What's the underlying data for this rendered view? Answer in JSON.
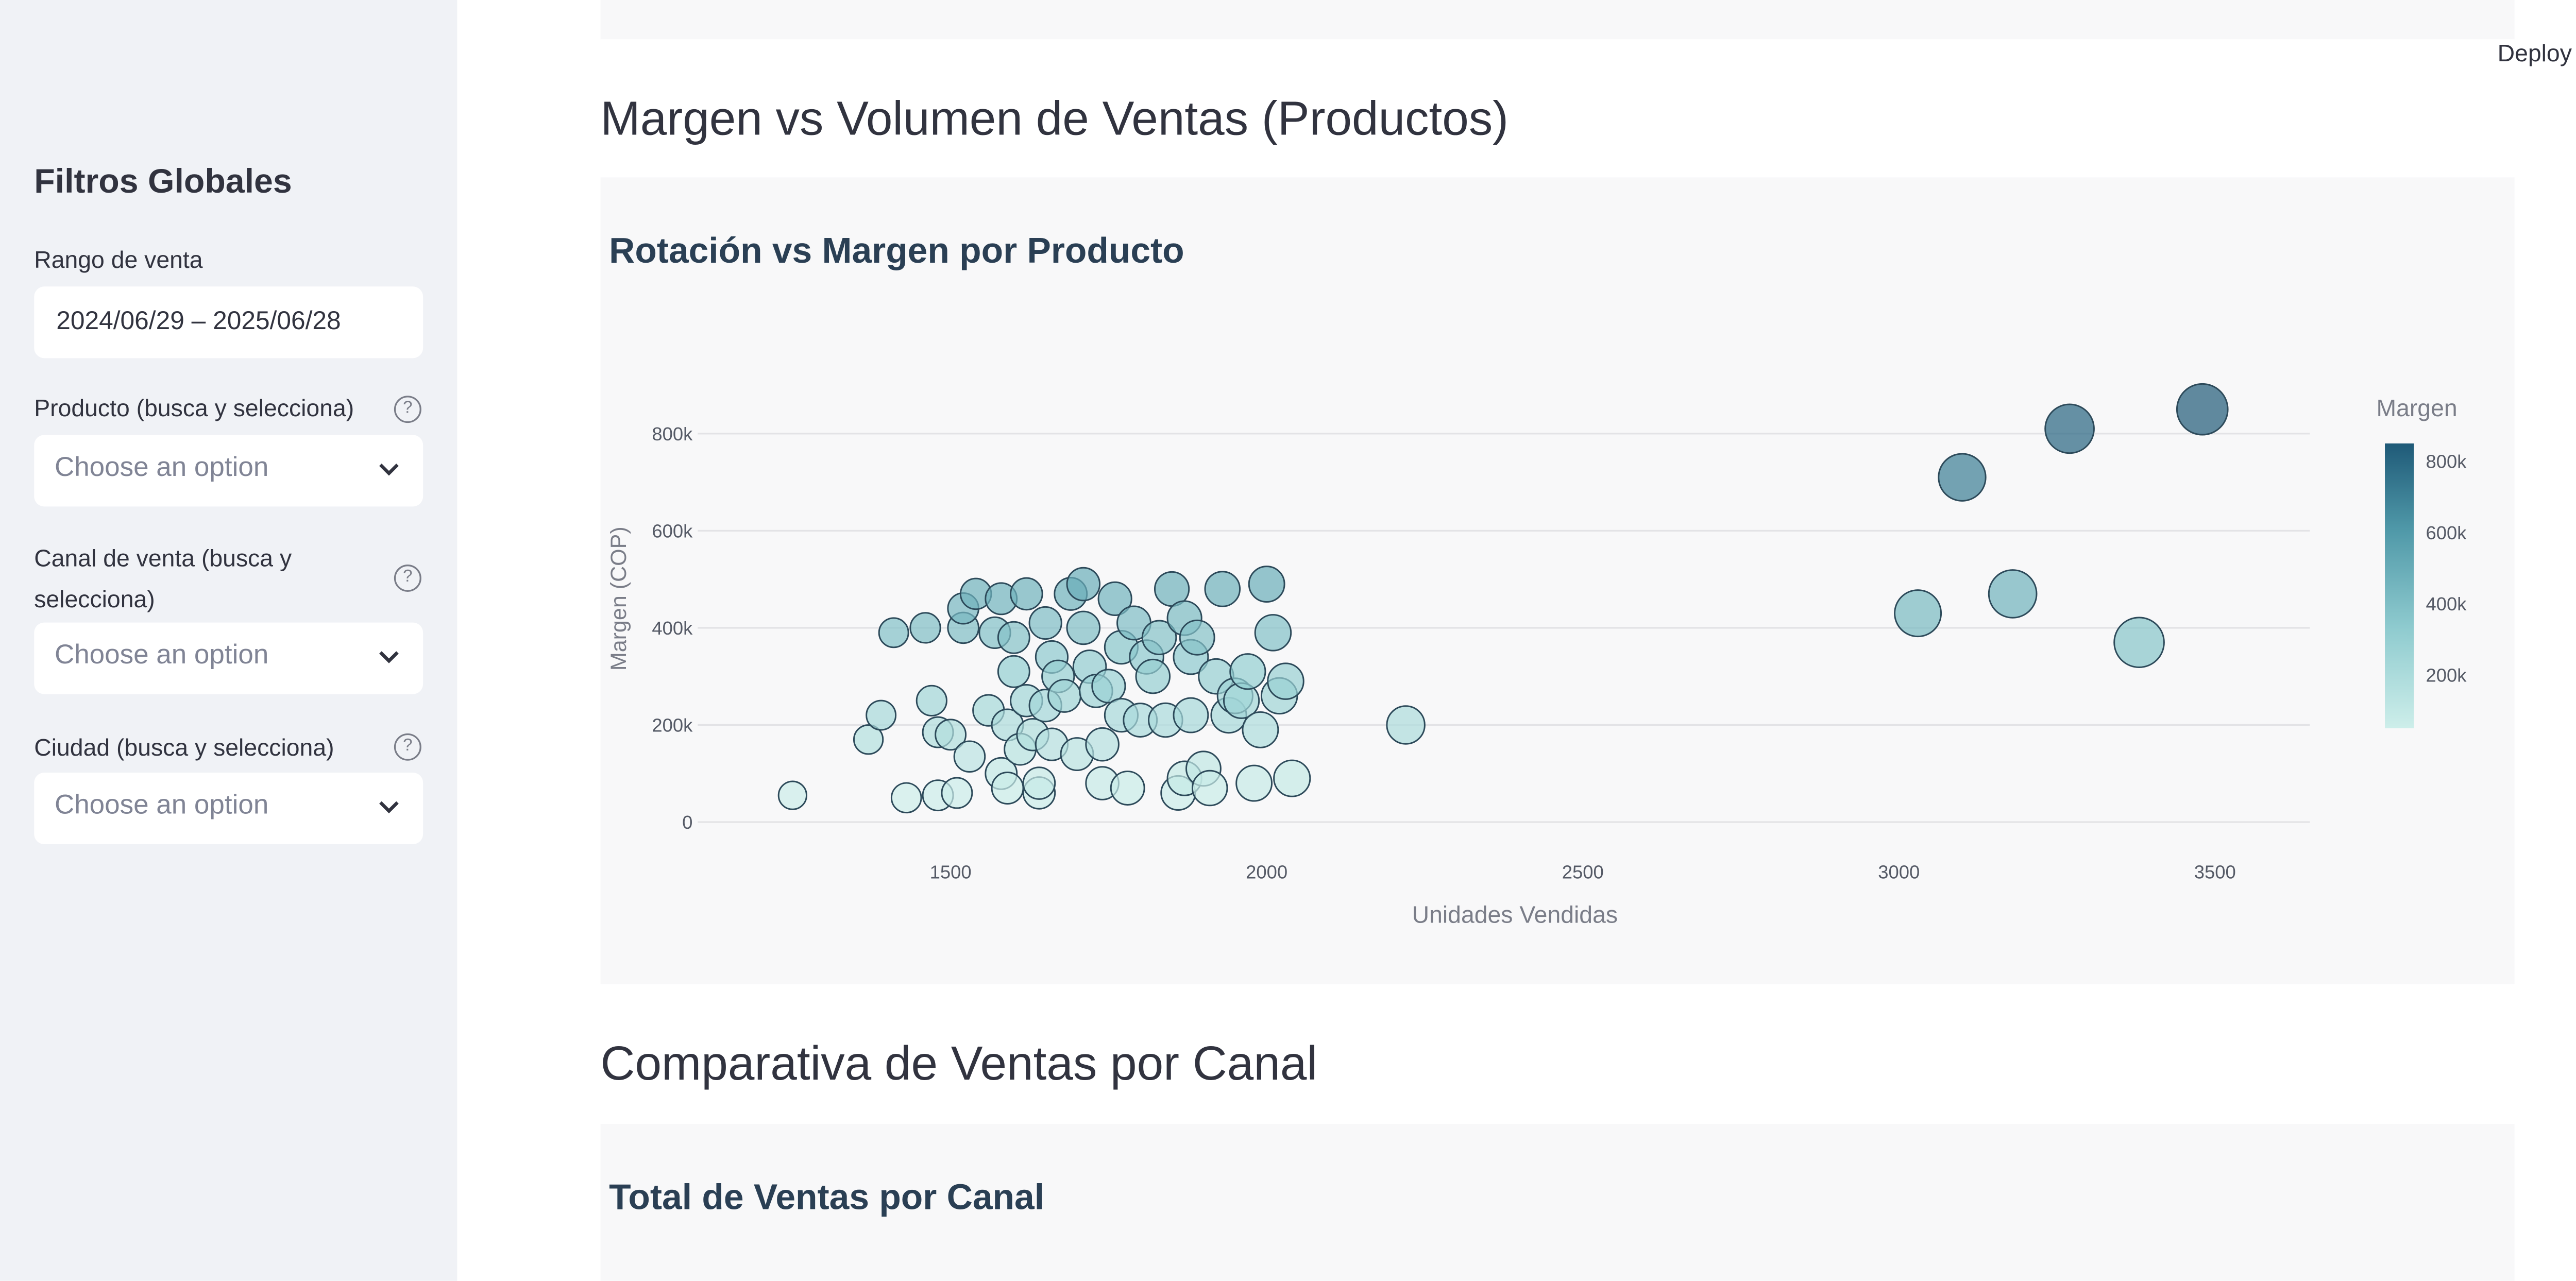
{
  "sidebar": {
    "title": "Filtros Globales",
    "date_range": {
      "label": "Rango de venta",
      "value": "2024/06/29 – 2025/06/28"
    },
    "product": {
      "label": "Producto (busca y selecciona)",
      "placeholder": "Choose an option"
    },
    "channel": {
      "label_line1": "Canal de venta (busca y",
      "label_line2": "selecciona)",
      "placeholder": "Choose an option"
    },
    "city": {
      "label": "Ciudad (busca y selecciona)",
      "placeholder": "Choose an option"
    },
    "help_icon": "question-circle-icon",
    "chevron_icon": "chevron-down-icon"
  },
  "header": {
    "deploy_label": "Deploy",
    "menu_icon": "kebab-menu-icon"
  },
  "sections": [
    {
      "heading": "Margen vs Volumen de Ventas (Productos)",
      "card_title": "Rotación vs Margen por Producto"
    },
    {
      "heading": "Comparativa de Ventas por Canal",
      "card_title": "Total de Ventas por Canal"
    }
  ],
  "chart_data": {
    "type": "scatter",
    "xlabel": "Unidades Vendidas",
    "ylabel": "Margen (COP)",
    "xlim": [
      1100,
      3650
    ],
    "ylim": [
      0,
      850000
    ],
    "xticks": [
      1500,
      2000,
      2500,
      3000,
      3500
    ],
    "xtick_labels": [
      "1500",
      "2000",
      "2500",
      "3000",
      "3500"
    ],
    "yticks": [
      0,
      200000,
      400000,
      600000,
      800000
    ],
    "ytick_labels": [
      "0",
      "200k",
      "400k",
      "600k",
      "800k"
    ],
    "grid": true,
    "colorbar": {
      "title": "Margen",
      "ticks": [
        200000,
        400000,
        600000,
        800000
      ],
      "tick_labels": [
        "200k",
        "400k",
        "600k",
        "800k"
      ],
      "range": [
        50000,
        850000
      ],
      "colors": [
        "#cdeeea",
        "#8fcbcf",
        "#4f98a8",
        "#1f5a78"
      ]
    },
    "size_by": "units",
    "points": [
      [
        1250,
        55000
      ],
      [
        1370,
        170000
      ],
      [
        1390,
        220000
      ],
      [
        1410,
        390000
      ],
      [
        1430,
        50000
      ],
      [
        1460,
        400000
      ],
      [
        1470,
        250000
      ],
      [
        1480,
        55000
      ],
      [
        1480,
        185000
      ],
      [
        1500,
        180000
      ],
      [
        1510,
        60000
      ],
      [
        1520,
        400000
      ],
      [
        1520,
        440000
      ],
      [
        1530,
        135000
      ],
      [
        1540,
        470000
      ],
      [
        1560,
        230000
      ],
      [
        1570,
        390000
      ],
      [
        1580,
        460000
      ],
      [
        1580,
        100000
      ],
      [
        1590,
        70000
      ],
      [
        1590,
        200000
      ],
      [
        1600,
        380000
      ],
      [
        1600,
        310000
      ],
      [
        1610,
        150000
      ],
      [
        1620,
        470000
      ],
      [
        1620,
        250000
      ],
      [
        1630,
        180000
      ],
      [
        1640,
        60000
      ],
      [
        1640,
        80000
      ],
      [
        1650,
        410000
      ],
      [
        1650,
        240000
      ],
      [
        1660,
        160000
      ],
      [
        1660,
        340000
      ],
      [
        1670,
        300000
      ],
      [
        1680,
        260000
      ],
      [
        1690,
        470000
      ],
      [
        1700,
        140000
      ],
      [
        1710,
        490000
      ],
      [
        1710,
        400000
      ],
      [
        1720,
        320000
      ],
      [
        1730,
        270000
      ],
      [
        1740,
        80000
      ],
      [
        1740,
        160000
      ],
      [
        1750,
        280000
      ],
      [
        1760,
        460000
      ],
      [
        1770,
        360000
      ],
      [
        1770,
        220000
      ],
      [
        1780,
        70000
      ],
      [
        1790,
        410000
      ],
      [
        1800,
        210000
      ],
      [
        1810,
        340000
      ],
      [
        1820,
        300000
      ],
      [
        1830,
        380000
      ],
      [
        1840,
        210000
      ],
      [
        1850,
        480000
      ],
      [
        1860,
        60000
      ],
      [
        1870,
        420000
      ],
      [
        1870,
        90000
      ],
      [
        1880,
        340000
      ],
      [
        1880,
        220000
      ],
      [
        1890,
        380000
      ],
      [
        1900,
        110000
      ],
      [
        1910,
        70000
      ],
      [
        1920,
        300000
      ],
      [
        1930,
        480000
      ],
      [
        1940,
        220000
      ],
      [
        1950,
        260000
      ],
      [
        1960,
        250000
      ],
      [
        1970,
        310000
      ],
      [
        1980,
        80000
      ],
      [
        1990,
        190000
      ],
      [
        2000,
        490000
      ],
      [
        2010,
        390000
      ],
      [
        2020,
        260000
      ],
      [
        2030,
        290000
      ],
      [
        2040,
        90000
      ],
      [
        2220,
        200000
      ],
      [
        3030,
        430000
      ],
      [
        3100,
        710000
      ],
      [
        3180,
        470000
      ],
      [
        3270,
        810000
      ],
      [
        3380,
        370000
      ],
      [
        3480,
        850000
      ]
    ]
  }
}
